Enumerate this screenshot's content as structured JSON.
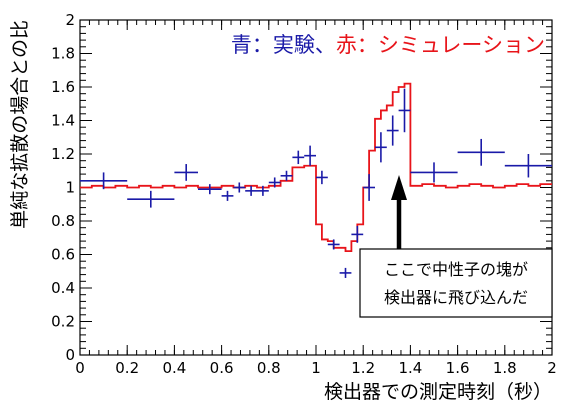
{
  "chart_data": {
    "type": "line",
    "title": "",
    "xlabel": "検出器での測定時刻（秒）",
    "ylabel": "単純な拡散の場合との比",
    "xlim": [
      0,
      2
    ],
    "ylim": [
      0,
      2
    ],
    "x_ticks": [
      "0",
      "0.2",
      "0.4",
      "0.6",
      "0.8",
      "1",
      "1.2",
      "1.4",
      "1.6",
      "1.8",
      "2"
    ],
    "y_ticks": [
      "0",
      "0.2",
      "0.4",
      "0.6",
      "0.8",
      "1",
      "1.2",
      "1.4",
      "1.6",
      "1.8",
      "2"
    ],
    "legend": {
      "placement": "top-right",
      "blue_label": "青：実験",
      "separator": "、",
      "red_label": "赤：シミュレーション"
    },
    "annotation": {
      "line1": "ここで中性子の塊が",
      "line2": "検出器に飛び込んだ"
    },
    "colors": {
      "experiment": "#1a1aa8",
      "simulation": "#e8141a"
    },
    "experiment": [
      {
        "x": 0.1,
        "xerr": 0.1,
        "y": 1.04,
        "yerr": 0.05
      },
      {
        "x": 0.3,
        "xerr": 0.1,
        "y": 0.93,
        "yerr": 0.05
      },
      {
        "x": 0.45,
        "xerr": 0.05,
        "y": 1.09,
        "yerr": 0.05
      },
      {
        "x": 0.55,
        "xerr": 0.05,
        "y": 0.99,
        "yerr": 0.03
      },
      {
        "x": 0.625,
        "xerr": 0.025,
        "y": 0.95,
        "yerr": 0.03
      },
      {
        "x": 0.675,
        "xerr": 0.025,
        "y": 1.0,
        "yerr": 0.03
      },
      {
        "x": 0.725,
        "xerr": 0.025,
        "y": 0.98,
        "yerr": 0.03
      },
      {
        "x": 0.775,
        "xerr": 0.025,
        "y": 0.98,
        "yerr": 0.03
      },
      {
        "x": 0.825,
        "xerr": 0.025,
        "y": 1.03,
        "yerr": 0.03
      },
      {
        "x": 0.875,
        "xerr": 0.025,
        "y": 1.07,
        "yerr": 0.03
      },
      {
        "x": 0.925,
        "xerr": 0.025,
        "y": 1.18,
        "yerr": 0.04
      },
      {
        "x": 0.975,
        "xerr": 0.025,
        "y": 1.19,
        "yerr": 0.06
      },
      {
        "x": 1.025,
        "xerr": 0.025,
        "y": 1.06,
        "yerr": 0.04
      },
      {
        "x": 1.075,
        "xerr": 0.025,
        "y": 0.66,
        "yerr": 0.03
      },
      {
        "x": 1.125,
        "xerr": 0.025,
        "y": 0.49,
        "yerr": 0.03
      },
      {
        "x": 1.175,
        "xerr": 0.025,
        "y": 0.72,
        "yerr": 0.05
      },
      {
        "x": 1.225,
        "xerr": 0.025,
        "y": 1.0,
        "yerr": 0.08
      },
      {
        "x": 1.275,
        "xerr": 0.025,
        "y": 1.24,
        "yerr": 0.09
      },
      {
        "x": 1.325,
        "xerr": 0.025,
        "y": 1.34,
        "yerr": 0.09
      },
      {
        "x": 1.375,
        "xerr": 0.025,
        "y": 1.46,
        "yerr": 0.13
      },
      {
        "x": 1.5,
        "xerr": 0.1,
        "y": 1.09,
        "yerr": 0.06
      },
      {
        "x": 1.7,
        "xerr": 0.1,
        "y": 1.21,
        "yerr": 0.08
      },
      {
        "x": 1.9,
        "xerr": 0.1,
        "y": 1.13,
        "yerr": 0.07
      }
    ],
    "simulation_edges": [
      0,
      0.05,
      0.1,
      0.15,
      0.2,
      0.25,
      0.3,
      0.35,
      0.4,
      0.45,
      0.5,
      0.55,
      0.6,
      0.65,
      0.7,
      0.75,
      0.8,
      0.85,
      0.9,
      0.95,
      1.0,
      1.025,
      1.05,
      1.075,
      1.1,
      1.125,
      1.15,
      1.175,
      1.2,
      1.225,
      1.25,
      1.275,
      1.3,
      1.325,
      1.35,
      1.375,
      1.4,
      1.45,
      1.5,
      1.55,
      1.6,
      1.65,
      1.7,
      1.75,
      1.8,
      1.85,
      1.9,
      1.95,
      2.0
    ],
    "simulation_values": [
      1.0,
      1.01,
      1.0,
      1.01,
      1.0,
      1.01,
      1.0,
      1.01,
      1.0,
      1.01,
      1.0,
      1.0,
      1.01,
      1.0,
      1.01,
      1.0,
      1.01,
      1.04,
      1.12,
      1.13,
      0.78,
      0.69,
      0.68,
      0.64,
      0.64,
      0.62,
      0.68,
      0.78,
      1.0,
      1.22,
      1.41,
      1.46,
      1.49,
      1.57,
      1.6,
      1.62,
      1.01,
      1.02,
      1.01,
      1.0,
      1.01,
      1.02,
      1.01,
      1.0,
      1.01,
      1.02,
      1.01,
      1.02
    ]
  }
}
